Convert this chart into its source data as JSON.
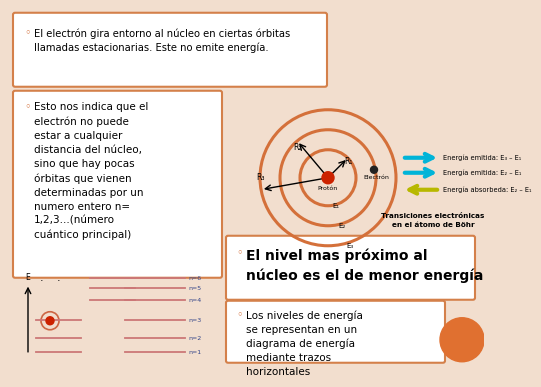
{
  "bg_color": "#f2dece",
  "border_color": "#d4804a",
  "box1_text": "El electrón gira entorno al núcleo en ciertas órbitas\nllamadas estacionarias. Este no emite energía.",
  "box2_text": "Esto nos indica que el\nelectrón no puede\nestar a cualquier\ndistancia del núcleo,\nsino que hay pocas\nórbitas que vienen\ndeterminadas por un\nnumero entero n=\n1,2,3...(número\ncuántico principal)",
  "box3_text": "El nivel mas próximo al\nnúcleo es el de menor energía",
  "box4_text": "Los niveles de energía\nse representan en un\ndiagrama de energía\nmediante trazos\nhorizontales",
  "arrow1_text": "Energía emitida: E₃ – E₁",
  "arrow2_text": "Energía emitida: E₂ – E₁",
  "arrow3_text": "Energía absorbeda: E₂ – E₁",
  "transition_text": "Transiciones electrónicas\nen el átomo de Böhr",
  "orbit_color": "#d4703a",
  "arrow_cyan": "#00b4d8",
  "arrow_yellow": "#b8b800",
  "bullet_color": "#d4703a",
  "orange_circle": "#e07030",
  "text_color": "#000000",
  "line_color": "#cc7777",
  "dark_blue_label": "#334488"
}
